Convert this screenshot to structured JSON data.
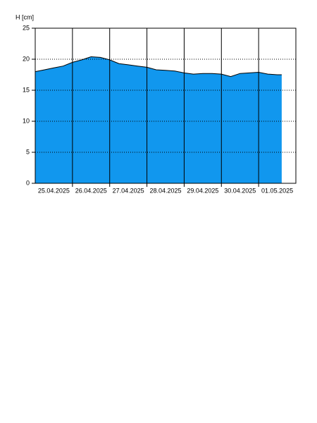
{
  "chart_data": {
    "type": "area",
    "y_label": "H [cm]",
    "x": [
      0,
      0.25,
      0.5,
      0.75,
      1.0,
      1.25,
      1.5,
      1.75,
      2.0,
      2.25,
      2.5,
      2.75,
      3.0,
      3.25,
      3.5,
      3.75,
      4.0,
      4.25,
      4.5,
      4.75,
      5.0,
      5.25,
      5.5,
      5.75,
      6.0,
      6.25,
      6.5,
      6.62
    ],
    "values": [
      18.0,
      18.3,
      18.6,
      18.9,
      19.5,
      19.9,
      20.4,
      20.3,
      19.9,
      19.3,
      19.1,
      18.9,
      18.7,
      18.3,
      18.2,
      18.1,
      17.8,
      17.6,
      17.7,
      17.7,
      17.6,
      17.2,
      17.7,
      17.8,
      17.9,
      17.6,
      17.5,
      17.5
    ],
    "color": "#1197ee",
    "xlim": [
      0,
      7
    ],
    "xticks": [
      {
        "value": 0.5,
        "label": "25.04.2025"
      },
      {
        "value": 1.5,
        "label": "26.04.2025"
      },
      {
        "value": 2.5,
        "label": "27.04.2025"
      },
      {
        "value": 3.5,
        "label": "28.04.2025"
      },
      {
        "value": 4.5,
        "label": "29.04.2025"
      },
      {
        "value": 5.5,
        "label": "30.04.2025"
      },
      {
        "value": 6.5,
        "label": "01.05.2025"
      }
    ],
    "xgrid": [
      1,
      2,
      3,
      4,
      5,
      6
    ],
    "ylim": [
      0,
      25
    ],
    "yticks": [
      0,
      5,
      10,
      15,
      20,
      25
    ],
    "grid": true
  }
}
